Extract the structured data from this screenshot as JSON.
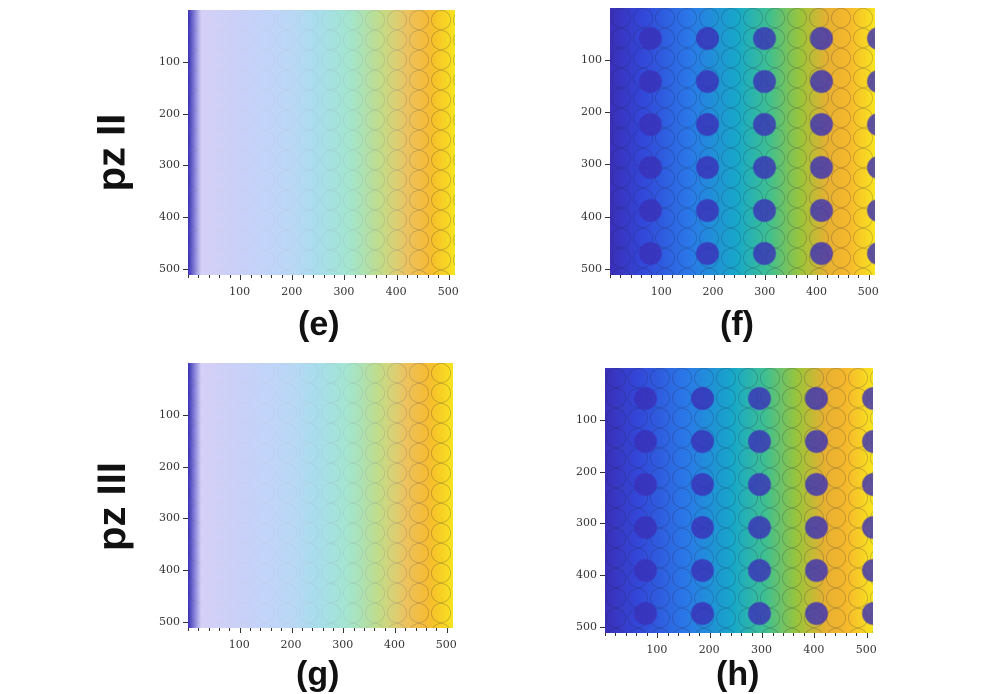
{
  "rows": [
    {
      "label": "pz II"
    },
    {
      "label": "pz III"
    }
  ],
  "panels": [
    {
      "label": "(e)",
      "style": "overlay",
      "xticks": [
        100,
        200,
        300,
        400,
        500
      ],
      "yticks": [
        100,
        200,
        300,
        400,
        500
      ]
    },
    {
      "label": "(f)",
      "style": "segmented",
      "xticks": [
        100,
        200,
        300,
        400,
        500
      ],
      "yticks": [
        100,
        200,
        300,
        400,
        500
      ]
    },
    {
      "label": "(g)",
      "style": "overlay",
      "xticks": [
        100,
        200,
        300,
        400,
        500
      ],
      "yticks": [
        100,
        200,
        300,
        400,
        500
      ]
    },
    {
      "label": "(h)",
      "style": "segmented",
      "xticks": [
        100,
        200,
        300,
        400,
        500
      ],
      "yticks": [
        100,
        200,
        300,
        400,
        500
      ]
    }
  ],
  "axis_range": [
    0,
    512
  ],
  "colors": {
    "low": "#3a2fb8",
    "mid": "#17a8c8",
    "high": "#f8e420"
  }
}
